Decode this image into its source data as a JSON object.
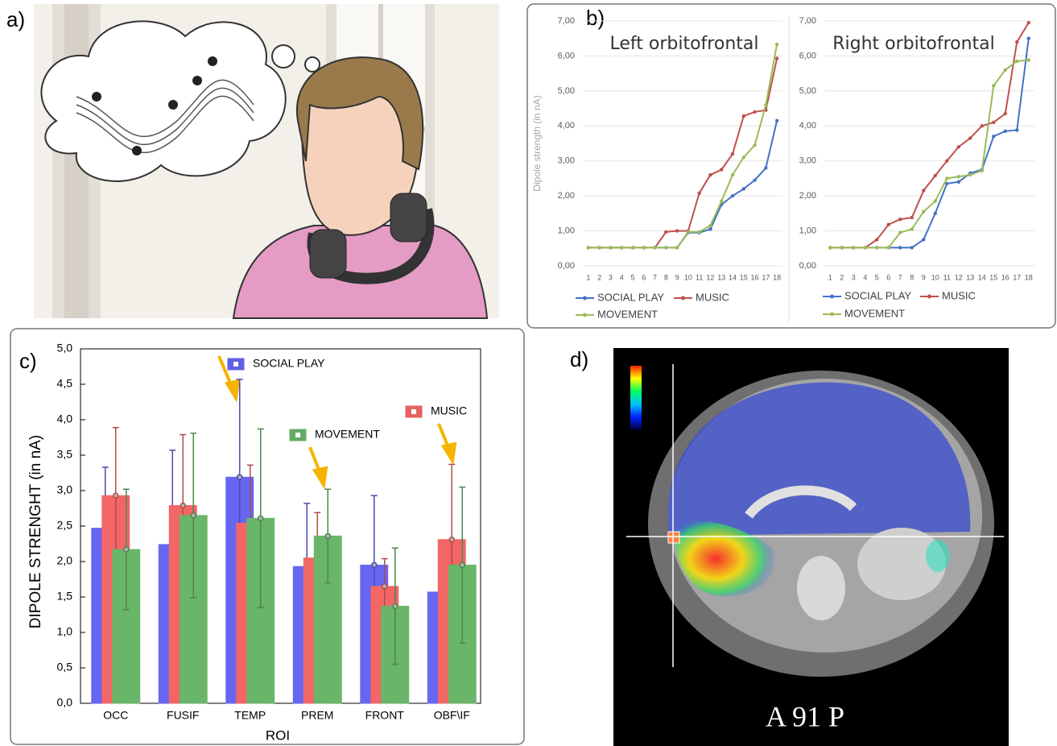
{
  "panel_labels": [
    "a)",
    "b)",
    "c)",
    "d)"
  ],
  "image_caption": "A 91 P",
  "chart_data": [
    {
      "type": "line",
      "title": "Left orbitofrontal",
      "ylabel": "Dipole strength (in nA)",
      "categories": [
        1,
        2,
        3,
        4,
        5,
        6,
        7,
        8,
        9,
        10,
        11,
        12,
        13,
        14,
        15,
        16,
        17,
        18
      ],
      "ylim": [
        0,
        7
      ],
      "grid": true,
      "yticks": [
        {
          "value": 0,
          "label": "0,00"
        },
        {
          "value": 1,
          "label": "1,00"
        },
        {
          "value": 2,
          "label": "2,00"
        },
        {
          "value": 3,
          "label": "3,00"
        },
        {
          "value": 4,
          "label": "4,00"
        },
        {
          "value": 5,
          "label": "5,00"
        },
        {
          "value": 6,
          "label": "6,00"
        },
        {
          "value": 7,
          "label": "7,00"
        }
      ],
      "series": [
        {
          "name": "SOCIAL PLAY",
          "color": "#4472c4",
          "values": [
            0.52,
            0.52,
            0.52,
            0.52,
            0.52,
            0.52,
            0.52,
            0.52,
            0.52,
            0.95,
            0.95,
            1.05,
            1.75,
            2.0,
            2.2,
            2.45,
            2.8,
            4.15
          ]
        },
        {
          "name": "MUSIC",
          "color": "#c0504d",
          "values": [
            0.52,
            0.52,
            0.52,
            0.52,
            0.52,
            0.52,
            0.52,
            0.97,
            1.0,
            1.0,
            2.08,
            2.6,
            2.75,
            3.2,
            4.28,
            4.4,
            4.45,
            5.93
          ]
        },
        {
          "name": "MOVEMENT",
          "color": "#9bbb59",
          "values": [
            0.52,
            0.52,
            0.52,
            0.52,
            0.52,
            0.52,
            0.52,
            0.52,
            0.52,
            0.97,
            0.97,
            1.15,
            1.85,
            2.6,
            3.1,
            3.45,
            4.6,
            6.33
          ]
        }
      ]
    },
    {
      "type": "line",
      "title": "Right orbitofrontal",
      "categories": [
        1,
        2,
        3,
        4,
        5,
        6,
        7,
        8,
        9,
        10,
        11,
        12,
        13,
        14,
        15,
        16,
        17,
        18
      ],
      "ylim": [
        0,
        7
      ],
      "grid": true,
      "yticks": [
        {
          "value": 0,
          "label": "0,00"
        },
        {
          "value": 1,
          "label": "1,00"
        },
        {
          "value": 2,
          "label": "2,00"
        },
        {
          "value": 3,
          "label": "3,00"
        },
        {
          "value": 4,
          "label": "4,00"
        },
        {
          "value": 5,
          "label": "5,00"
        },
        {
          "value": 6,
          "label": "6,00"
        },
        {
          "value": 7,
          "label": "7,00"
        }
      ],
      "series": [
        {
          "name": "SOCIAL PLAY",
          "color": "#4472c4",
          "values": [
            0.52,
            0.52,
            0.52,
            0.52,
            0.52,
            0.52,
            0.52,
            0.52,
            0.75,
            1.5,
            2.35,
            2.4,
            2.65,
            2.75,
            3.7,
            3.85,
            3.88,
            6.5
          ]
        },
        {
          "name": "MUSIC",
          "color": "#c0504d",
          "values": [
            0.52,
            0.52,
            0.52,
            0.52,
            0.75,
            1.18,
            1.33,
            1.38,
            2.15,
            2.58,
            3.0,
            3.4,
            3.65,
            4.0,
            4.1,
            4.35,
            6.4,
            6.95
          ]
        },
        {
          "name": "MOVEMENT",
          "color": "#9bbb59",
          "values": [
            0.52,
            0.52,
            0.52,
            0.52,
            0.52,
            0.52,
            0.95,
            1.05,
            1.55,
            1.85,
            2.5,
            2.55,
            2.6,
            2.72,
            5.15,
            5.6,
            5.85,
            5.88
          ]
        }
      ]
    },
    {
      "type": "bar",
      "ylabel": "DIPOLE STRENGHT  (in nA)",
      "xlabel": "ROI",
      "categories": [
        "OCC",
        "FUSIF",
        "TEMP",
        "PREM",
        "FRONT",
        "OBF\\IF"
      ],
      "ylim": [
        0,
        5
      ],
      "yticks": [
        {
          "value": 0,
          "label": "0,0"
        },
        {
          "value": 0.5,
          "label": "0,5"
        },
        {
          "value": 1,
          "label": "1,0"
        },
        {
          "value": 1.5,
          "label": "1,5"
        },
        {
          "value": 2,
          "label": "2,0"
        },
        {
          "value": 2.5,
          "label": "2,5"
        },
        {
          "value": 3,
          "label": "3,0"
        },
        {
          "value": 3.5,
          "label": "3,5"
        },
        {
          "value": 4,
          "label": "4,0"
        },
        {
          "value": 4.5,
          "label": "4,5"
        },
        {
          "value": 5,
          "label": "5,0"
        }
      ],
      "series": [
        {
          "name": "SOCIAL PLAY",
          "color": "#6b6bff",
          "values": [
            2.47,
            2.24,
            3.19,
            1.93,
            1.95,
            1.57
          ],
          "errors": [
            0.86,
            1.33,
            1.38,
            0.89,
            0.98,
            null
          ]
        },
        {
          "name": "MUSIC",
          "color": "#ff6b6b",
          "values": [
            2.93,
            2.79,
            2.54,
            2.05,
            1.65,
            2.31
          ],
          "errors": [
            0.96,
            1.0,
            0.82,
            0.64,
            0.39,
            1.06
          ]
        },
        {
          "name": "MOVEMENT",
          "color": "#6fbf6f",
          "values": [
            2.17,
            2.65,
            2.61,
            2.36,
            1.37,
            1.95
          ],
          "errors": [
            0.85,
            1.16,
            1.26,
            0.66,
            0.82,
            1.1
          ]
        }
      ]
    }
  ]
}
